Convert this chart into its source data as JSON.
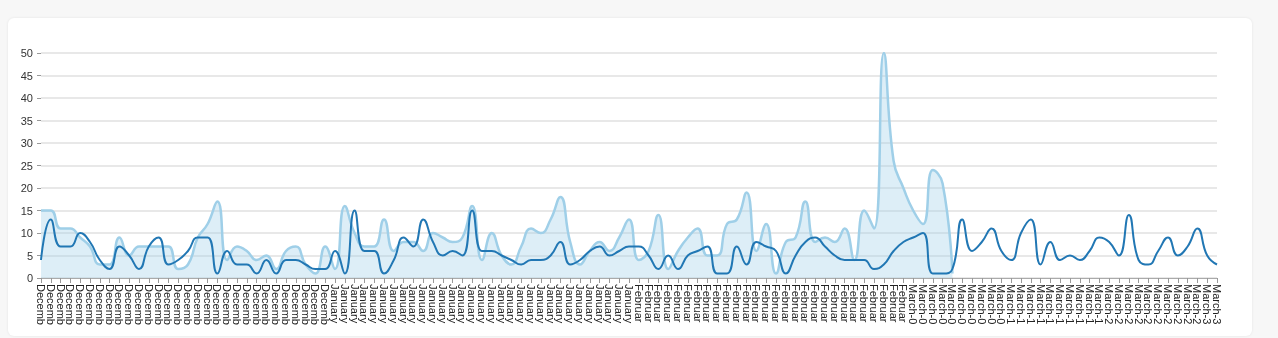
{
  "chart_data": {
    "type": "line",
    "categories": [
      "Decemb",
      "Decemb",
      "Decemb",
      "Decemb",
      "Decemb",
      "Decemb",
      "Decemb",
      "Decemb",
      "Decemb",
      "Decemb",
      "Decemb",
      "Decemb",
      "Decemb",
      "Decemb",
      "Decemb",
      "Decemb",
      "Decemb",
      "Decemb",
      "Decemb",
      "Decemb",
      "Decemb",
      "Decemb",
      "Decemb",
      "Decemb",
      "Decemb",
      "Decemb",
      "Decemb",
      "Decemb",
      "Decemb",
      "Decemb",
      "January",
      "January",
      "January",
      "January",
      "January",
      "January",
      "January",
      "January",
      "January",
      "January",
      "January",
      "January",
      "January",
      "January",
      "January",
      "January",
      "January",
      "January",
      "January",
      "January",
      "January",
      "January",
      "January",
      "January",
      "January",
      "January",
      "January",
      "January",
      "January",
      "January",
      "January",
      "Februar",
      "Februar",
      "Februar",
      "Februar",
      "Februar",
      "Februar",
      "Februar",
      "Februar",
      "Februar",
      "Februar",
      "Februar",
      "Februar",
      "Februar",
      "Februar",
      "Februar",
      "Februar",
      "Februar",
      "Februar",
      "Februar",
      "Februar",
      "Februar",
      "Februar",
      "Februar",
      "Februar",
      "Februar",
      "Februar",
      "Februar",
      "Februar",
      "March-0",
      "March-0",
      "March-0",
      "March-0",
      "March-0",
      "March-0",
      "March-0",
      "March-0",
      "March-0",
      "March-0",
      "March-1",
      "March-1",
      "March-1",
      "March-1",
      "March-1",
      "March-1",
      "March-1",
      "March-1",
      "March-1",
      "March-1",
      "March-2",
      "March-2",
      "March-2",
      "March-2",
      "March-2",
      "March-2",
      "March-2",
      "March-2",
      "March-2",
      "March-2",
      "March-3",
      "March-3"
    ],
    "series": [
      {
        "type": "area",
        "color": "#9fcfe8",
        "values": [
          15,
          15,
          11,
          11,
          9,
          7,
          3,
          3,
          9,
          5,
          7,
          7,
          7,
          7,
          2,
          3,
          9,
          12,
          17,
          4,
          7,
          6,
          4,
          5,
          2,
          6,
          7,
          3,
          1,
          7,
          2,
          16,
          10,
          7,
          7,
          13,
          6,
          8,
          8,
          6,
          10,
          9,
          8,
          9,
          16,
          4,
          10,
          5,
          3,
          7,
          11,
          10,
          13,
          18,
          8,
          3,
          6,
          8,
          6,
          9,
          13,
          4,
          6,
          14,
          2,
          6,
          9,
          11,
          5,
          5,
          12,
          13,
          19,
          6,
          12,
          1,
          8,
          9,
          17,
          8,
          9,
          8,
          11,
          4,
          15,
          11,
          50,
          26,
          20,
          15,
          12,
          24,
          21,
          1,
          null,
          null,
          null,
          null,
          null,
          null,
          null,
          null,
          null,
          null,
          null,
          null,
          null,
          null,
          null,
          null,
          null,
          null,
          null,
          null,
          null,
          null,
          null,
          null,
          null,
          null,
          null
        ]
      },
      {
        "color": "#2177b4",
        "values": [
          4,
          13,
          7,
          7,
          10,
          8,
          4,
          2,
          7,
          5,
          2,
          7,
          9,
          3,
          4,
          6,
          9,
          9,
          1,
          6,
          3,
          3,
          1,
          4,
          1,
          4,
          4,
          3,
          2,
          2,
          6,
          1,
          15,
          6,
          6,
          1,
          4,
          9,
          7,
          13,
          8,
          5,
          6,
          5,
          15,
          6,
          6,
          5,
          4,
          3,
          4,
          4,
          5,
          8,
          3,
          4,
          6,
          7,
          5,
          6,
          7,
          7,
          5,
          2,
          5,
          2,
          5,
          6,
          7,
          1,
          1,
          7,
          3,
          8,
          7,
          6,
          1,
          5,
          8,
          9,
          7,
          5,
          4,
          4,
          4,
          2,
          3,
          6,
          8,
          9,
          10,
          1,
          1,
          2,
          13,
          6,
          8,
          11,
          6,
          4,
          10,
          13,
          3,
          8,
          4,
          5,
          4,
          6,
          9,
          8,
          5,
          14,
          4,
          3,
          6,
          9,
          5,
          7,
          11,
          5,
          3
        ]
      }
    ],
    "ylim": [
      0,
      50
    ],
    "yticks": [
      0,
      5,
      10,
      15,
      20,
      25,
      30,
      35,
      40,
      45,
      50
    ],
    "grid": "y",
    "marker": "none"
  }
}
